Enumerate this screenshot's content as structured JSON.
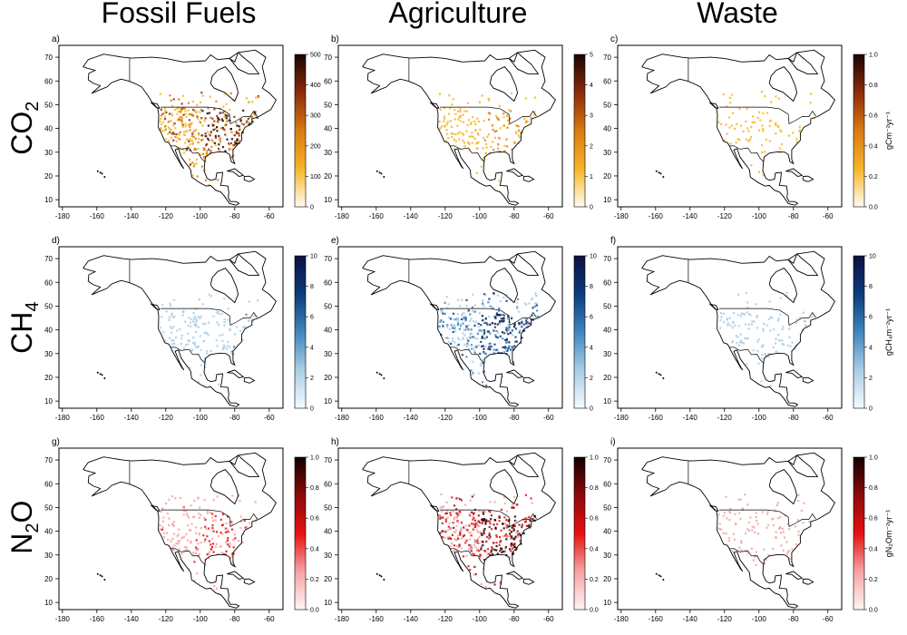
{
  "columns": [
    "Fossil Fuels",
    "Agriculture",
    "Waste"
  ],
  "rows": [
    {
      "gas": "CO",
      "sub": "2"
    },
    {
      "gas": "CH",
      "sub": "4"
    },
    {
      "gas": "N",
      "sub": "2",
      "tail": "O"
    }
  ],
  "panel_labels": [
    "a)",
    "b)",
    "c)",
    "d)",
    "e)",
    "f)",
    "g)",
    "h)",
    "i)"
  ],
  "x_ticks": [
    "-180",
    "-160",
    "-140",
    "-120",
    "-100",
    "-80",
    "-60"
  ],
  "y_ticks": [
    "70",
    "60",
    "50",
    "40",
    "30",
    "20",
    "10"
  ],
  "colorbars": [
    {
      "ticks": [
        "500",
        "400",
        "300",
        "200",
        "100",
        "0"
      ]
    },
    {
      "ticks": [
        "5",
        "4",
        "3",
        "2",
        "1",
        "0"
      ]
    },
    {
      "ticks": [
        "1.0",
        "0.8",
        "0.6",
        "0.4",
        "0.2",
        "0.0"
      ]
    },
    {
      "ticks": [
        "10",
        "8",
        "6",
        "4",
        "2",
        "0"
      ]
    },
    {
      "ticks": [
        "10",
        "8",
        "6",
        "4",
        "2",
        "0"
      ]
    },
    {
      "ticks": [
        "10",
        "8",
        "6",
        "4",
        "2",
        "0"
      ]
    },
    {
      "ticks": [
        "1.0",
        "0.8",
        "0.6",
        "0.4",
        "0.2",
        "0.0"
      ]
    },
    {
      "ticks": [
        "1.0",
        "0.8",
        "0.6",
        "0.4",
        "0.2",
        "0.0"
      ]
    },
    {
      "ticks": [
        "1.0",
        "0.8",
        "0.6",
        "0.4",
        "0.2",
        "0.0"
      ]
    }
  ],
  "unit_labels": [
    "gCm⁻²yr⁻¹",
    "gCH₄m⁻²yr⁻¹",
    "gN₂Om⁻²yr⁻¹"
  ],
  "colors": {
    "co2": [
      "#fffdf0",
      "#f7b526",
      "#d97a12",
      "#8b2b0c",
      "#1a0500"
    ],
    "ch4": [
      "#f5fbff",
      "#a9cde6",
      "#3f86bd",
      "#0b3b7d",
      "#0b1040"
    ],
    "n2o": [
      "#fff5f5",
      "#f5a3a3",
      "#e81010",
      "#8b0a0a",
      "#120000"
    ]
  }
}
